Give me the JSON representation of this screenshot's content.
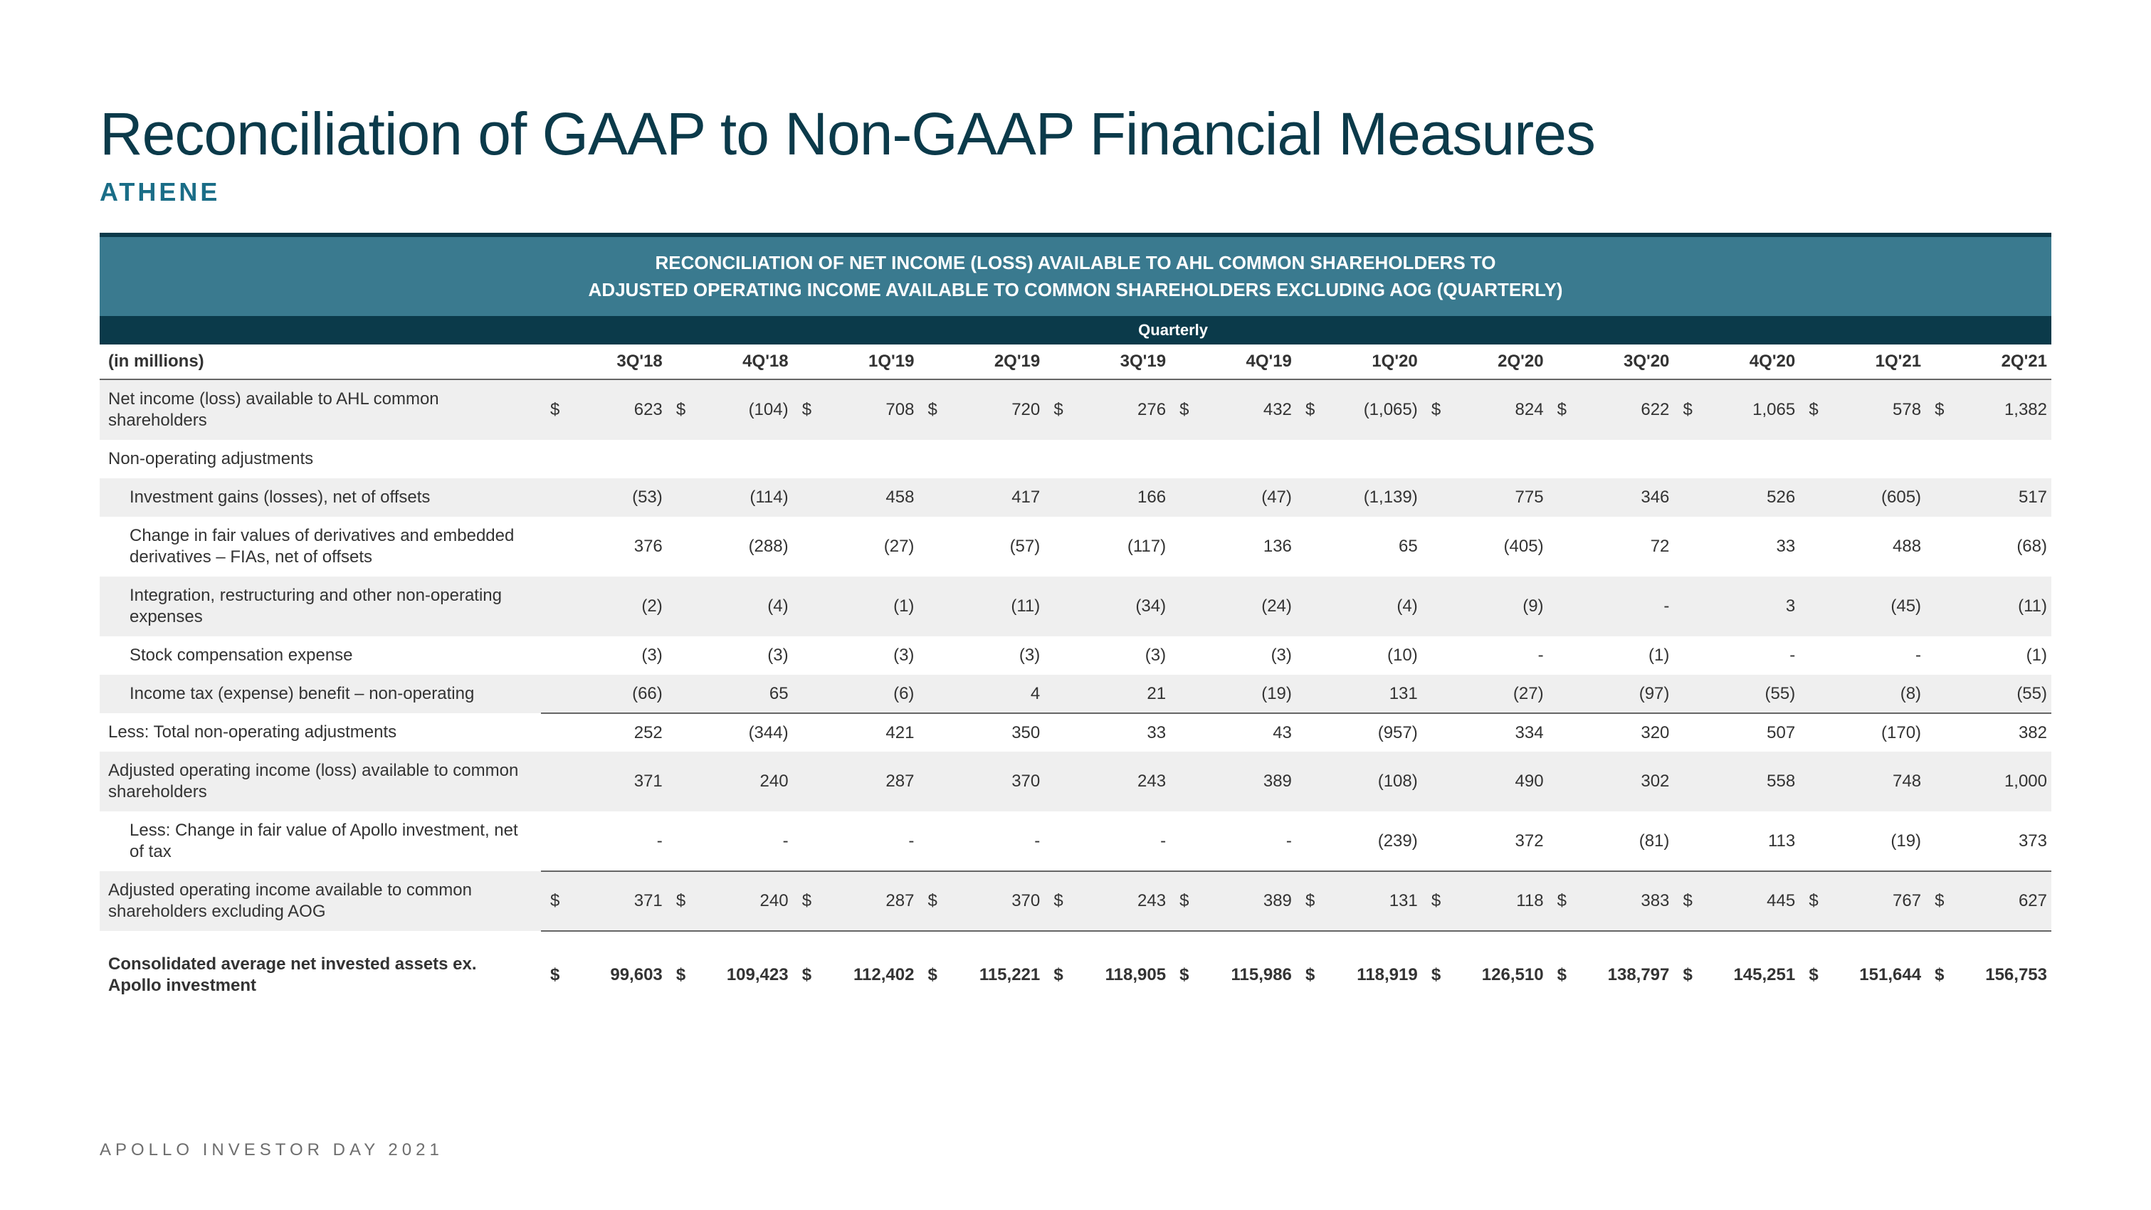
{
  "page": {
    "title": "Reconciliation of GAAP to Non-GAAP Financial Measures",
    "subtitle": "ATHENE",
    "footer": "APOLLO INVESTOR DAY 2021"
  },
  "banner": {
    "line1": "RECONCILIATION OF NET INCOME (LOSS) AVAILABLE TO AHL COMMON SHAREHOLDERS TO",
    "line2": "ADJUSTED OPERATING INCOME AVAILABLE TO COMMON SHAREHOLDERS EXCLUDING AOG (QUARTERLY)",
    "quarterly_label": "Quarterly"
  },
  "table": {
    "unit_label": "(in millions)",
    "periods": [
      "3Q'18",
      "4Q'18",
      "1Q'19",
      "2Q'19",
      "3Q'19",
      "4Q'19",
      "1Q'20",
      "2Q'20",
      "3Q'20",
      "4Q'20",
      "1Q'21",
      "2Q'21"
    ],
    "rows": [
      {
        "id": "net_income",
        "label": "Net income (loss) available to AHL common shareholders",
        "shade": true,
        "dollar": true,
        "values": [
          "623",
          "(104)",
          "708",
          "720",
          "276",
          "432",
          "(1,065)",
          "824",
          "622",
          "1,065",
          "578",
          "1,382"
        ]
      },
      {
        "id": "nonop_header",
        "label": "Non-operating adjustments",
        "section": true
      },
      {
        "id": "inv_gains",
        "label": "Investment gains (losses), net of offsets",
        "shade": true,
        "indent": true,
        "values": [
          "(53)",
          "(114)",
          "458",
          "417",
          "166",
          "(47)",
          "(1,139)",
          "775",
          "346",
          "526",
          "(605)",
          "517"
        ]
      },
      {
        "id": "fv_deriv",
        "label": "Change in fair values of derivatives and embedded derivatives – FIAs, net of offsets",
        "indent": true,
        "values": [
          "376",
          "(288)",
          "(27)",
          "(57)",
          "(117)",
          "136",
          "65",
          "(405)",
          "72",
          "33",
          "488",
          "(68)"
        ]
      },
      {
        "id": "integration",
        "label": "Integration, restructuring and other non-operating expenses",
        "shade": true,
        "indent": true,
        "values": [
          "(2)",
          "(4)",
          "(1)",
          "(11)",
          "(34)",
          "(24)",
          "(4)",
          "(9)",
          "-",
          "3",
          "(45)",
          "(11)"
        ]
      },
      {
        "id": "stock_comp",
        "label": "Stock compensation expense",
        "indent": true,
        "values": [
          "(3)",
          "(3)",
          "(3)",
          "(3)",
          "(3)",
          "(3)",
          "(10)",
          "-",
          "(1)",
          "-",
          "-",
          "(1)"
        ]
      },
      {
        "id": "tax",
        "label": "Income tax (expense) benefit – non-operating",
        "shade": true,
        "indent": true,
        "values": [
          "(66)",
          "65",
          "(6)",
          "4",
          "21",
          "(19)",
          "131",
          "(27)",
          "(97)",
          "(55)",
          "(8)",
          "(55)"
        ]
      },
      {
        "id": "less_total",
        "label": "Less: Total non-operating adjustments",
        "rule": true,
        "values": [
          "252",
          "(344)",
          "421",
          "350",
          "33",
          "43",
          "(957)",
          "334",
          "320",
          "507",
          "(170)",
          "382"
        ]
      },
      {
        "id": "adj_op_inc",
        "label": "Adjusted operating income (loss) available to common shareholders",
        "shade": true,
        "values": [
          "371",
          "240",
          "287",
          "370",
          "243",
          "389",
          "(108)",
          "490",
          "302",
          "558",
          "748",
          "1,000"
        ]
      },
      {
        "id": "less_apollo",
        "label": "Less: Change in fair value of Apollo investment, net of tax",
        "indent": true,
        "values": [
          "-",
          "-",
          "-",
          "-",
          "-",
          "-",
          "(239)",
          "372",
          "(81)",
          "113",
          "(19)",
          "373"
        ]
      },
      {
        "id": "adj_ex_aog",
        "label": "Adjusted operating income available to common shareholders excluding AOG",
        "shade": true,
        "dollar": true,
        "rule": true,
        "rule_bottom": true,
        "values": [
          "371",
          "240",
          "287",
          "370",
          "243",
          "389",
          "131",
          "118",
          "383",
          "445",
          "767",
          "627"
        ]
      },
      {
        "id": "spacer",
        "spacer": true
      },
      {
        "id": "net_invested",
        "label": "Consolidated average net invested assets ex. Apollo investment",
        "bold": true,
        "dollar": true,
        "values": [
          "99,603",
          "109,423",
          "112,402",
          "115,221",
          "118,905",
          "115,986",
          "118,919",
          "126,510",
          "138,797",
          "145,251",
          "151,644",
          "156,753"
        ]
      }
    ]
  },
  "style": {
    "title_color": "#0b3a4a",
    "subtitle_color": "#1a6d87",
    "banner_bg": "#3a7a8f",
    "quarterly_bg": "#0b3a4a",
    "shade_bg": "#efefef",
    "border_color": "#666666"
  }
}
